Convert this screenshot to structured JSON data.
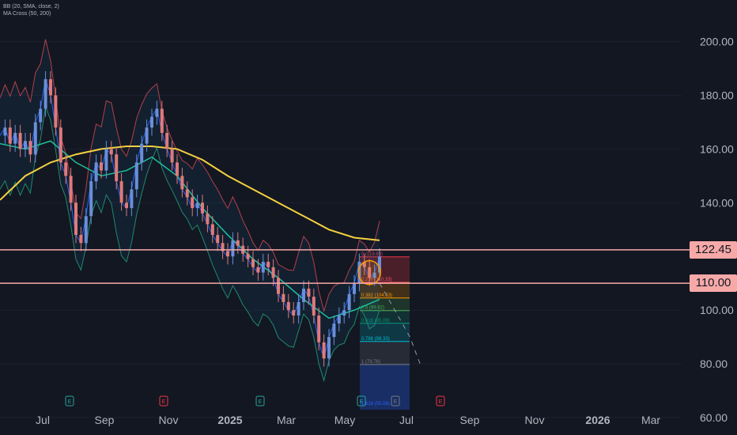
{
  "legend": {
    "bb": "BB (20, SMA, close, 2)",
    "ma": "MA Cross (50, 200)"
  },
  "colors": {
    "background": "#131722",
    "up": "#6a8fd8",
    "down": "#e07a7a",
    "ma50": "#1fbf9a",
    "ma200": "#f4d03f",
    "bb_basis": "#2962ff",
    "bb_upper": "#b2404a",
    "bb_lower": "#1e8a6e",
    "hline": "#f7a9a8"
  },
  "chart_data": {
    "type": "candlestick",
    "y_axis": {
      "ticks": [
        "200.00",
        "180.00",
        "160.00",
        "140.00",
        "100.00",
        "80.00",
        "60.00"
      ],
      "tick_values": [
        200,
        180,
        160,
        140,
        100,
        80,
        60
      ],
      "range": [
        53.5,
        215.5
      ]
    },
    "x_axis": {
      "ticks": [
        "Jul",
        "Sep",
        "Nov",
        "2025",
        "Mar",
        "May",
        "Jul",
        "Sep",
        "Nov",
        "2026",
        "Mar"
      ]
    },
    "horizontal_levels": [
      {
        "label": "122.45",
        "value": 122.45
      },
      {
        "label": "110.00",
        "value": 110.0
      }
    ],
    "fibonacci": [
      {
        "label": "0 (119.83)",
        "value": 119.83
      },
      {
        "label": "0.236 (110.33)",
        "value": 110.33
      },
      {
        "label": "0.382 (104.53)",
        "value": 104.53
      },
      {
        "label": "0.5 (99.82)",
        "value": 99.82
      },
      {
        "label": "0.618 (95.09)",
        "value": 95.09
      },
      {
        "label": "0.786 (88.33)",
        "value": 88.33
      },
      {
        "label": "1 (79.76)",
        "value": 79.76
      },
      {
        "label": "1.618 (55.08)",
        "value": 55.08
      }
    ],
    "series": [
      {
        "name": "price",
        "points": [
          [
            0,
            165
          ],
          [
            1,
            168
          ],
          [
            2,
            162
          ],
          [
            3,
            166
          ],
          [
            4,
            160
          ],
          [
            5,
            163
          ],
          [
            6,
            158
          ],
          [
            7,
            170
          ],
          [
            8,
            175
          ],
          [
            9,
            186
          ],
          [
            10,
            180
          ],
          [
            11,
            168
          ],
          [
            12,
            155
          ],
          [
            13,
            150
          ],
          [
            14,
            140
          ],
          [
            15,
            128
          ],
          [
            16,
            125
          ],
          [
            17,
            135
          ],
          [
            18,
            148
          ],
          [
            19,
            155
          ],
          [
            20,
            152
          ],
          [
            21,
            160
          ],
          [
            22,
            158
          ],
          [
            23,
            148
          ],
          [
            24,
            140
          ],
          [
            25,
            138
          ],
          [
            26,
            145
          ],
          [
            27,
            155
          ],
          [
            28,
            162
          ],
          [
            29,
            168
          ],
          [
            30,
            172
          ],
          [
            31,
            175
          ],
          [
            32,
            166
          ],
          [
            33,
            160
          ],
          [
            34,
            155
          ],
          [
            35,
            150
          ],
          [
            36,
            145
          ],
          [
            37,
            142
          ],
          [
            38,
            138
          ],
          [
            39,
            140
          ],
          [
            40,
            136
          ],
          [
            41,
            132
          ],
          [
            42,
            128
          ],
          [
            43,
            125
          ],
          [
            44,
            122
          ],
          [
            45,
            120
          ],
          [
            46,
            126
          ],
          [
            47,
            124
          ],
          [
            48,
            121
          ],
          [
            49,
            119
          ],
          [
            50,
            116
          ],
          [
            51,
            114
          ],
          [
            52,
            118
          ],
          [
            53,
            116
          ],
          [
            54,
            112
          ],
          [
            55,
            106
          ],
          [
            56,
            103
          ],
          [
            57,
            100
          ],
          [
            58,
            98
          ],
          [
            59,
            103
          ],
          [
            60,
            108
          ],
          [
            61,
            105
          ],
          [
            62,
            98
          ],
          [
            63,
            88
          ],
          [
            64,
            82
          ],
          [
            65,
            90
          ],
          [
            66,
            95
          ],
          [
            67,
            98
          ],
          [
            68,
            100
          ],
          [
            69,
            106
          ],
          [
            70,
            110
          ],
          [
            71,
            118
          ],
          [
            72,
            116
          ],
          [
            73,
            112
          ],
          [
            74,
            114
          ],
          [
            75,
            120
          ]
        ]
      },
      {
        "name": "MA 50",
        "points": [
          [
            0,
            162
          ],
          [
            5,
            160
          ],
          [
            10,
            163
          ],
          [
            15,
            155
          ],
          [
            20,
            150
          ],
          [
            25,
            152
          ],
          [
            30,
            157
          ],
          [
            35,
            150
          ],
          [
            40,
            138
          ],
          [
            45,
            128
          ],
          [
            50,
            119
          ],
          [
            55,
            112
          ],
          [
            60,
            104
          ],
          [
            65,
            97
          ],
          [
            70,
            100
          ],
          [
            75,
            104
          ]
        ]
      },
      {
        "name": "MA 200",
        "points": [
          [
            0,
            141
          ],
          [
            5,
            150
          ],
          [
            10,
            155
          ],
          [
            15,
            158
          ],
          [
            20,
            160
          ],
          [
            25,
            161
          ],
          [
            30,
            161
          ],
          [
            35,
            160
          ],
          [
            40,
            156
          ],
          [
            45,
            150
          ],
          [
            50,
            145
          ],
          [
            55,
            140
          ],
          [
            60,
            135
          ],
          [
            65,
            130
          ],
          [
            70,
            127
          ],
          [
            75,
            126
          ]
        ]
      }
    ],
    "projection": [
      [
        75,
        110
      ],
      [
        78,
        100
      ],
      [
        81,
        90
      ],
      [
        83,
        80
      ]
    ],
    "earnings_markers": [
      "E",
      "E",
      "E",
      "E",
      "E",
      "E"
    ]
  }
}
